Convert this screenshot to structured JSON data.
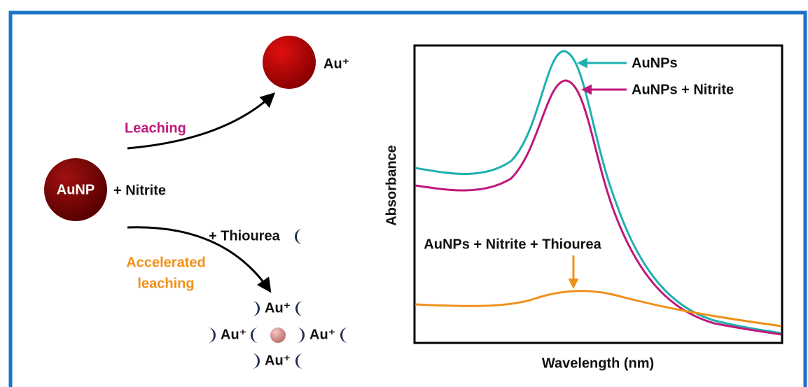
{
  "scheme": {
    "product_label": "Au⁺",
    "leaching": "Leaching",
    "reactant": "AuNP",
    "reagent": "+ Nitrite",
    "additive": "+ Thiourea",
    "accelerated": [
      "Accelerated",
      "leaching"
    ],
    "complex_labels": [
      "Au⁺",
      "Au⁺",
      "Au⁺",
      "Au⁺"
    ]
  },
  "spectrum": {
    "y_label": "Absorbance",
    "x_label": "Wavelength (nm)",
    "curves": [
      {
        "label": "AuNPs"
      },
      {
        "label": "AuNPs + Nitrite"
      },
      {
        "label": "AuNPs + Nitrite + Thiourea"
      }
    ]
  }
}
